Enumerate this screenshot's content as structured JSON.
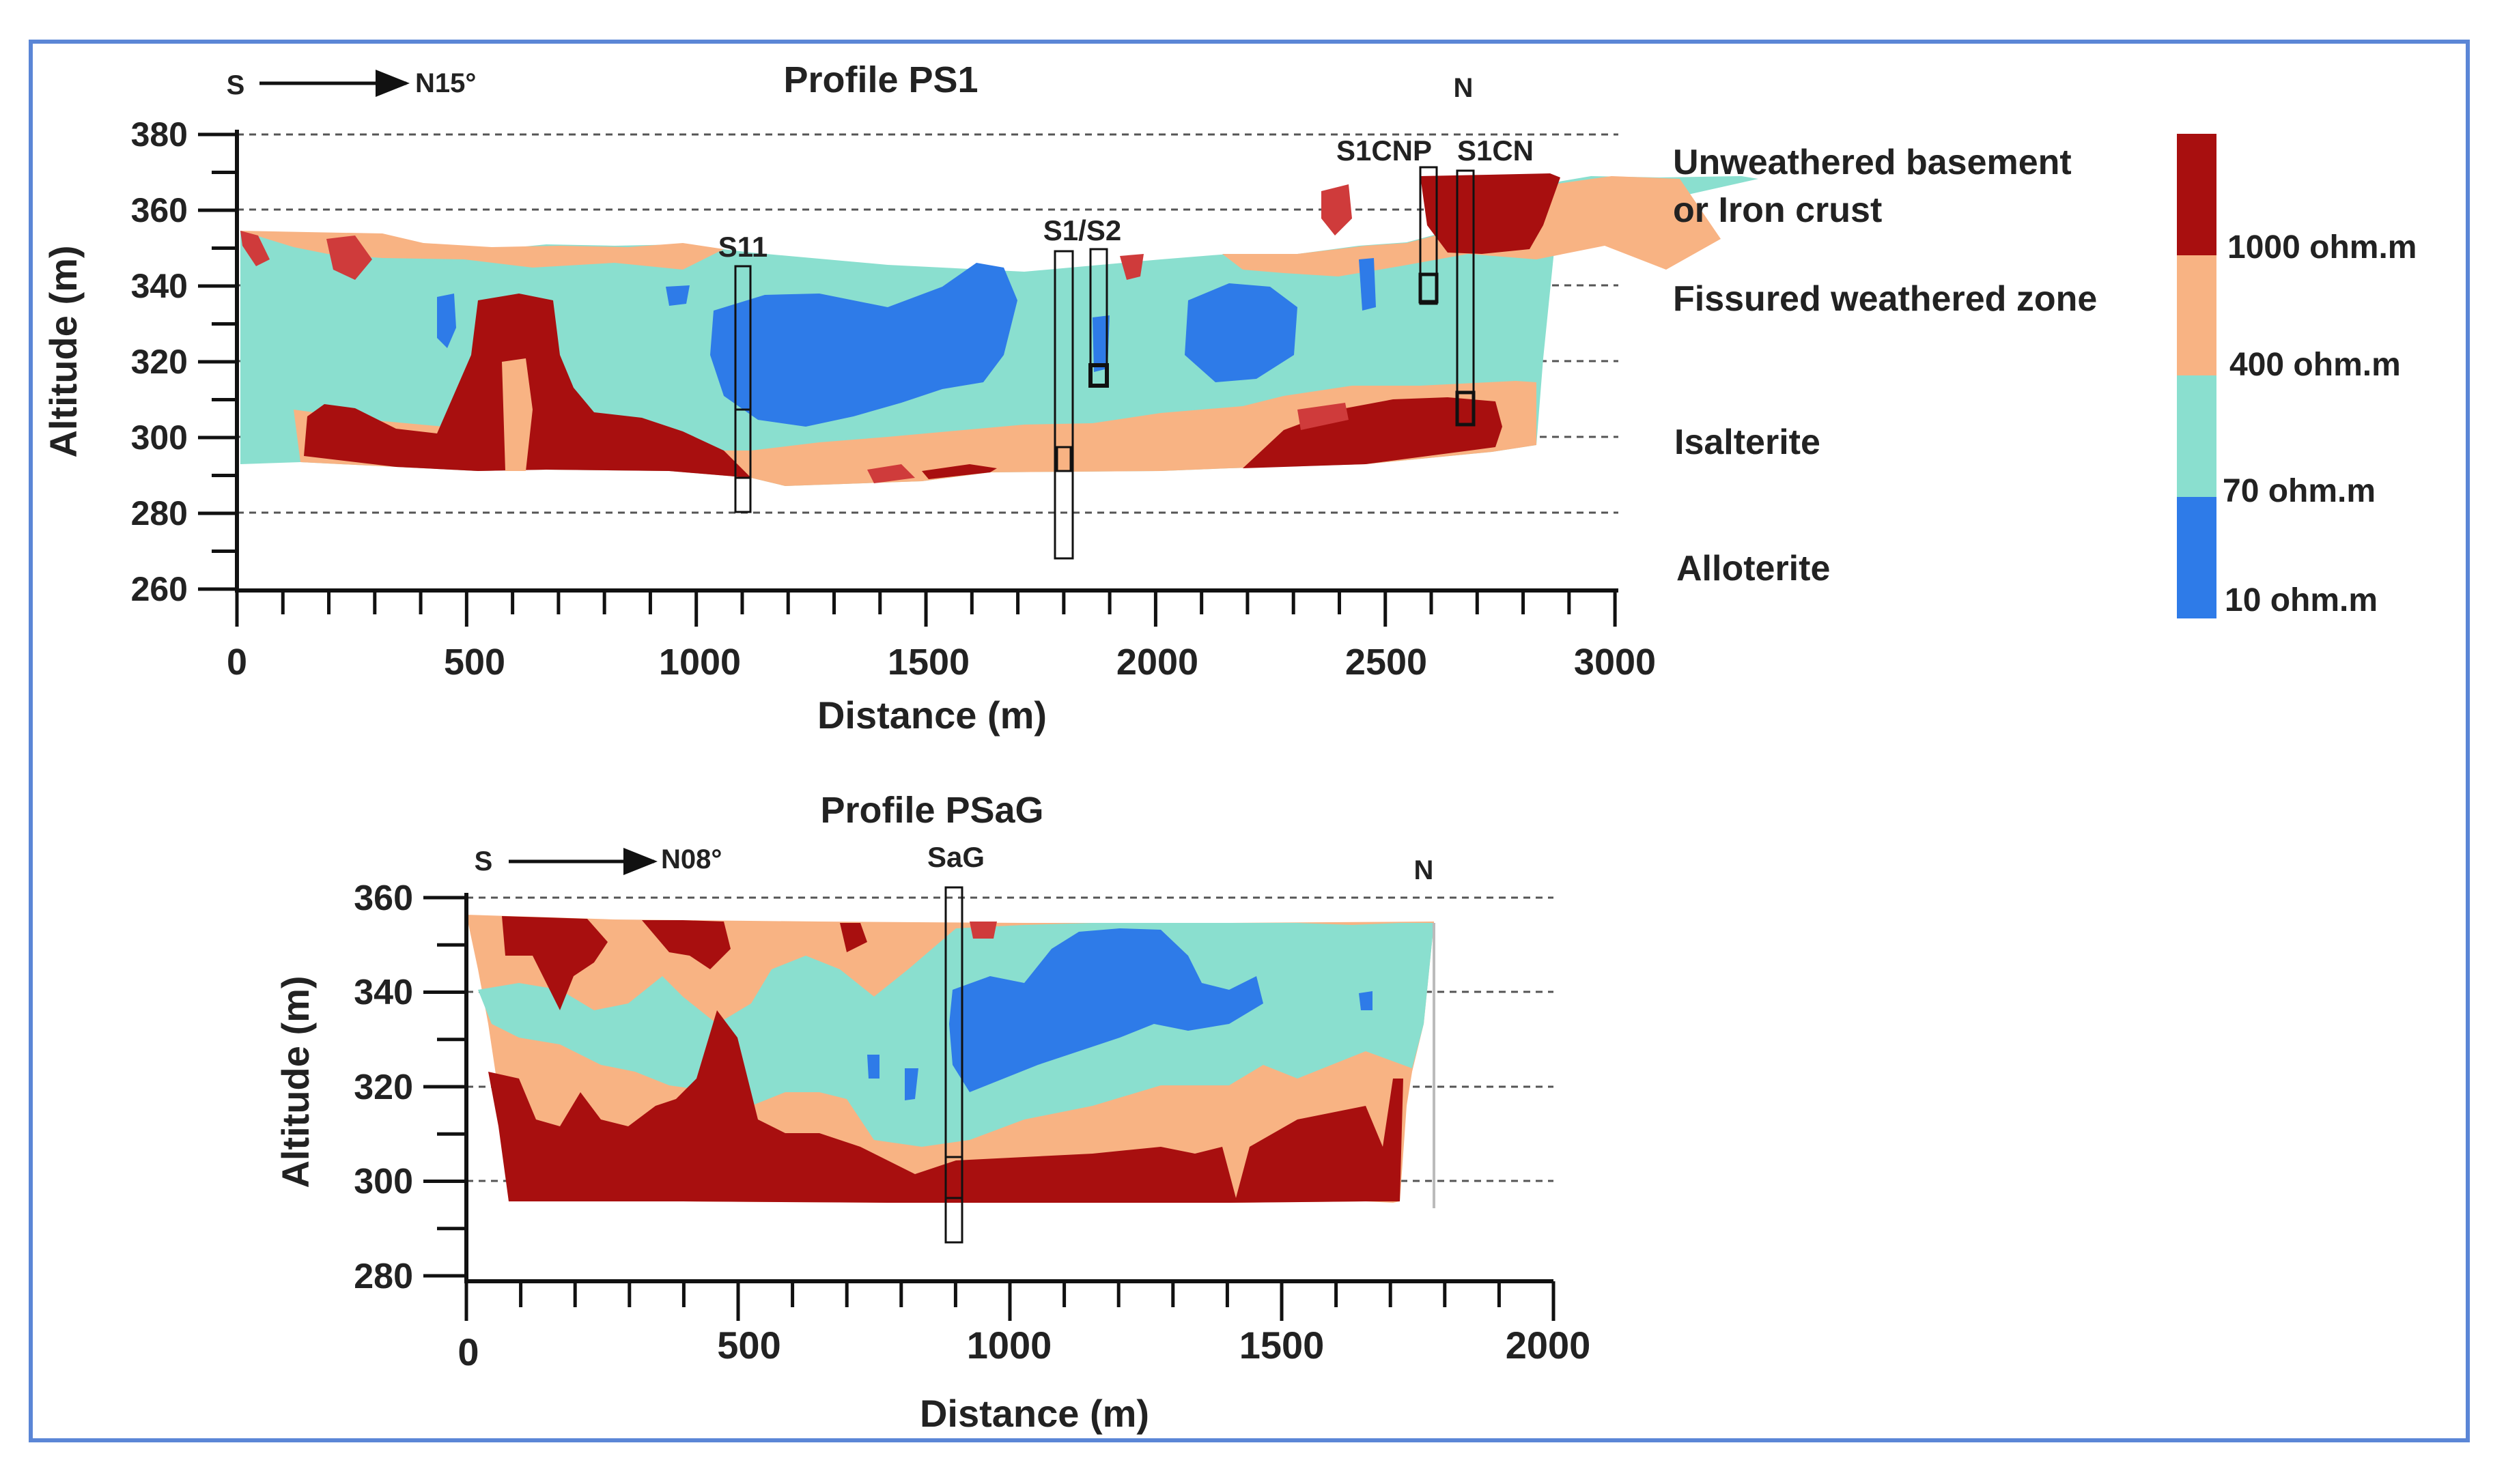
{
  "colors": {
    "very_high": "#a80f0f",
    "mid_high": "#cf3b3b",
    "high": "#f8b383",
    "mid": "#8adfcf",
    "low": "#2e7be8",
    "frame": "#5b86d6"
  },
  "profile1": {
    "title": "Profile PS1",
    "dir_start": "S",
    "dir_end": "N15°",
    "north": "N",
    "y_label": "Altitude (m)",
    "x_label": "Distance (m)",
    "y_ticks": [
      "380",
      "360",
      "340",
      "320",
      "300",
      "280",
      "260"
    ],
    "x_ticks": [
      "0",
      "500",
      "1000",
      "1500",
      "2000",
      "2500",
      "3000"
    ],
    "boreholes": [
      "S11",
      "S1/S2",
      "S1CNP",
      "S1CN"
    ]
  },
  "profile2": {
    "title": "Profile PSaG",
    "dir_start": "S",
    "dir_end": "N08°",
    "north": "N",
    "y_label": "Altitude (m)",
    "x_label": "Distance (m)",
    "y_ticks": [
      "360",
      "340",
      "320",
      "300",
      "280"
    ],
    "x_ticks": [
      "0",
      "500",
      "1000",
      "1500",
      "2000"
    ],
    "boreholes": [
      "SaG"
    ]
  },
  "zones": [
    "Unweathered basement",
    "or Iron crust",
    "Fissured weathered zone",
    "Isalterite",
    "Alloterite"
  ],
  "legend": [
    "1000 ohm.m",
    "400 ohm.m",
    "70 ohm.m",
    "10 ohm.m"
  ]
}
